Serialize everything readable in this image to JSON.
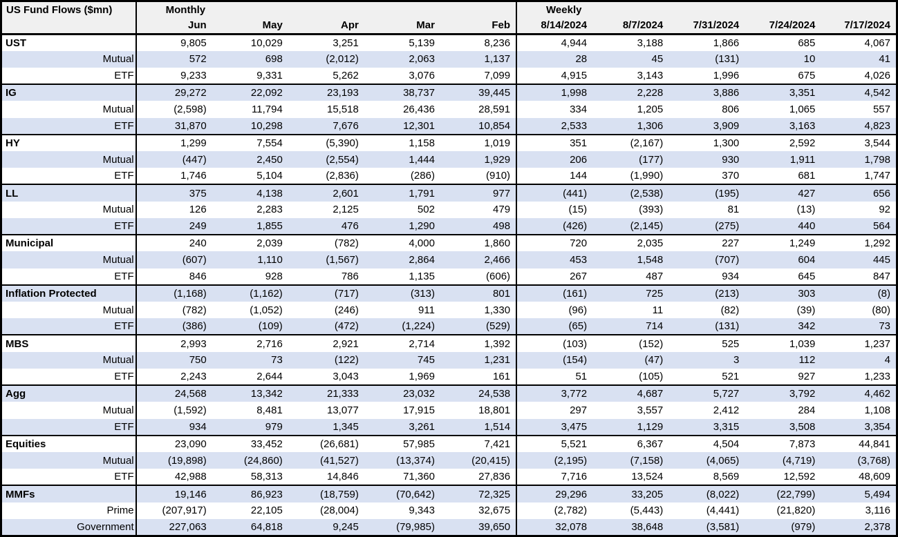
{
  "title": "US Fund Flows ($mn)",
  "sections": {
    "monthly": "Monthly",
    "weekly": "Weekly"
  },
  "colors": {
    "row_shade": "#d9e1f2",
    "header_bg": "#f0f0f0",
    "border": "#000000",
    "text": "#000000"
  },
  "chart_data": {
    "type": "table",
    "title": "US Fund Flows ($mn)",
    "monthly_columns": [
      "Jun",
      "May",
      "Apr",
      "Mar",
      "Feb"
    ],
    "weekly_columns": [
      "8/14/2024",
      "8/7/2024",
      "7/31/2024",
      "7/24/2024",
      "7/17/2024"
    ],
    "groups": [
      {
        "category": "UST",
        "rows": [
          {
            "label": "UST",
            "values": [
              "9,805",
              "10,029",
              "3,251",
              "5,139",
              "8,236",
              "4,944",
              "3,188",
              "1,866",
              "685",
              "4,067"
            ]
          },
          {
            "label": "Mutual",
            "values": [
              "572",
              "698",
              "(2,012)",
              "2,063",
              "1,137",
              "28",
              "45",
              "(131)",
              "10",
              "41"
            ]
          },
          {
            "label": "ETF",
            "values": [
              "9,233",
              "9,331",
              "5,262",
              "3,076",
              "7,099",
              "4,915",
              "3,143",
              "1,996",
              "675",
              "4,026"
            ]
          }
        ]
      },
      {
        "category": "IG",
        "rows": [
          {
            "label": "IG",
            "values": [
              "29,272",
              "22,092",
              "23,193",
              "38,737",
              "39,445",
              "1,998",
              "2,228",
              "3,886",
              "3,351",
              "4,542"
            ]
          },
          {
            "label": "Mutual",
            "values": [
              "(2,598)",
              "11,794",
              "15,518",
              "26,436",
              "28,591",
              "334",
              "1,205",
              "806",
              "1,065",
              "557"
            ]
          },
          {
            "label": "ETF",
            "values": [
              "31,870",
              "10,298",
              "7,676",
              "12,301",
              "10,854",
              "2,533",
              "1,306",
              "3,909",
              "3,163",
              "4,823"
            ]
          }
        ]
      },
      {
        "category": "HY",
        "rows": [
          {
            "label": "HY",
            "values": [
              "1,299",
              "7,554",
              "(5,390)",
              "1,158",
              "1,019",
              "351",
              "(2,167)",
              "1,300",
              "2,592",
              "3,544"
            ]
          },
          {
            "label": "Mutual",
            "values": [
              "(447)",
              "2,450",
              "(2,554)",
              "1,444",
              "1,929",
              "206",
              "(177)",
              "930",
              "1,911",
              "1,798"
            ]
          },
          {
            "label": "ETF",
            "values": [
              "1,746",
              "5,104",
              "(2,836)",
              "(286)",
              "(910)",
              "144",
              "(1,990)",
              "370",
              "681",
              "1,747"
            ]
          }
        ]
      },
      {
        "category": "LL",
        "rows": [
          {
            "label": "LL",
            "values": [
              "375",
              "4,138",
              "2,601",
              "1,791",
              "977",
              "(441)",
              "(2,538)",
              "(195)",
              "427",
              "656"
            ]
          },
          {
            "label": "Mutual",
            "values": [
              "126",
              "2,283",
              "2,125",
              "502",
              "479",
              "(15)",
              "(393)",
              "81",
              "(13)",
              "92"
            ]
          },
          {
            "label": "ETF",
            "values": [
              "249",
              "1,855",
              "476",
              "1,290",
              "498",
              "(426)",
              "(2,145)",
              "(275)",
              "440",
              "564"
            ]
          }
        ]
      },
      {
        "category": "Municipal",
        "rows": [
          {
            "label": "Municipal",
            "values": [
              "240",
              "2,039",
              "(782)",
              "4,000",
              "1,860",
              "720",
              "2,035",
              "227",
              "1,249",
              "1,292"
            ]
          },
          {
            "label": "Mutual",
            "values": [
              "(607)",
              "1,110",
              "(1,567)",
              "2,864",
              "2,466",
              "453",
              "1,548",
              "(707)",
              "604",
              "445"
            ]
          },
          {
            "label": "ETF",
            "values": [
              "846",
              "928",
              "786",
              "1,135",
              "(606)",
              "267",
              "487",
              "934",
              "645",
              "847"
            ]
          }
        ]
      },
      {
        "category": "Inflation Protected",
        "rows": [
          {
            "label": "Inflation Protected",
            "values": [
              "(1,168)",
              "(1,162)",
              "(717)",
              "(313)",
              "801",
              "(161)",
              "725",
              "(213)",
              "303",
              "(8)"
            ]
          },
          {
            "label": "Mutual",
            "values": [
              "(782)",
              "(1,052)",
              "(246)",
              "911",
              "1,330",
              "(96)",
              "11",
              "(82)",
              "(39)",
              "(80)"
            ]
          },
          {
            "label": "ETF",
            "values": [
              "(386)",
              "(109)",
              "(472)",
              "(1,224)",
              "(529)",
              "(65)",
              "714",
              "(131)",
              "342",
              "73"
            ]
          }
        ]
      },
      {
        "category": "MBS",
        "rows": [
          {
            "label": "MBS",
            "values": [
              "2,993",
              "2,716",
              "2,921",
              "2,714",
              "1,392",
              "(103)",
              "(152)",
              "525",
              "1,039",
              "1,237"
            ]
          },
          {
            "label": "Mutual",
            "values": [
              "750",
              "73",
              "(122)",
              "745",
              "1,231",
              "(154)",
              "(47)",
              "3",
              "112",
              "4"
            ]
          },
          {
            "label": "ETF",
            "values": [
              "2,243",
              "2,644",
              "3,043",
              "1,969",
              "161",
              "51",
              "(105)",
              "521",
              "927",
              "1,233"
            ]
          }
        ]
      },
      {
        "category": "Agg",
        "rows": [
          {
            "label": "Agg",
            "values": [
              "24,568",
              "13,342",
              "21,333",
              "23,032",
              "24,538",
              "3,772",
              "4,687",
              "5,727",
              "3,792",
              "4,462"
            ]
          },
          {
            "label": "Mutual",
            "values": [
              "(1,592)",
              "8,481",
              "13,077",
              "17,915",
              "18,801",
              "297",
              "3,557",
              "2,412",
              "284",
              "1,108"
            ]
          },
          {
            "label": "ETF",
            "values": [
              "934",
              "979",
              "1,345",
              "3,261",
              "1,514",
              "3,475",
              "1,129",
              "3,315",
              "3,508",
              "3,354"
            ]
          }
        ]
      },
      {
        "category": "Equities",
        "rows": [
          {
            "label": "Equities",
            "values": [
              "23,090",
              "33,452",
              "(26,681)",
              "57,985",
              "7,421",
              "5,521",
              "6,367",
              "4,504",
              "7,873",
              "44,841"
            ]
          },
          {
            "label": "Mutual",
            "values": [
              "(19,898)",
              "(24,860)",
              "(41,527)",
              "(13,374)",
              "(20,415)",
              "(2,195)",
              "(7,158)",
              "(4,065)",
              "(4,719)",
              "(3,768)"
            ]
          },
          {
            "label": "ETF",
            "values": [
              "42,988",
              "58,313",
              "14,846",
              "71,360",
              "27,836",
              "7,716",
              "13,524",
              "8,569",
              "12,592",
              "48,609"
            ]
          }
        ]
      },
      {
        "category": "MMFs",
        "rows": [
          {
            "label": "MMFs",
            "values": [
              "19,146",
              "86,923",
              "(18,759)",
              "(70,642)",
              "72,325",
              "29,296",
              "33,205",
              "(8,022)",
              "(22,799)",
              "5,494"
            ]
          },
          {
            "label": "Prime",
            "values": [
              "(207,917)",
              "22,105",
              "(28,004)",
              "9,343",
              "32,675",
              "(2,782)",
              "(5,443)",
              "(4,441)",
              "(21,820)",
              "3,116"
            ]
          },
          {
            "label": "Government",
            "values": [
              "227,063",
              "64,818",
              "9,245",
              "(79,985)",
              "39,650",
              "32,078",
              "38,648",
              "(3,581)",
              "(979)",
              "2,378"
            ]
          }
        ]
      }
    ]
  }
}
